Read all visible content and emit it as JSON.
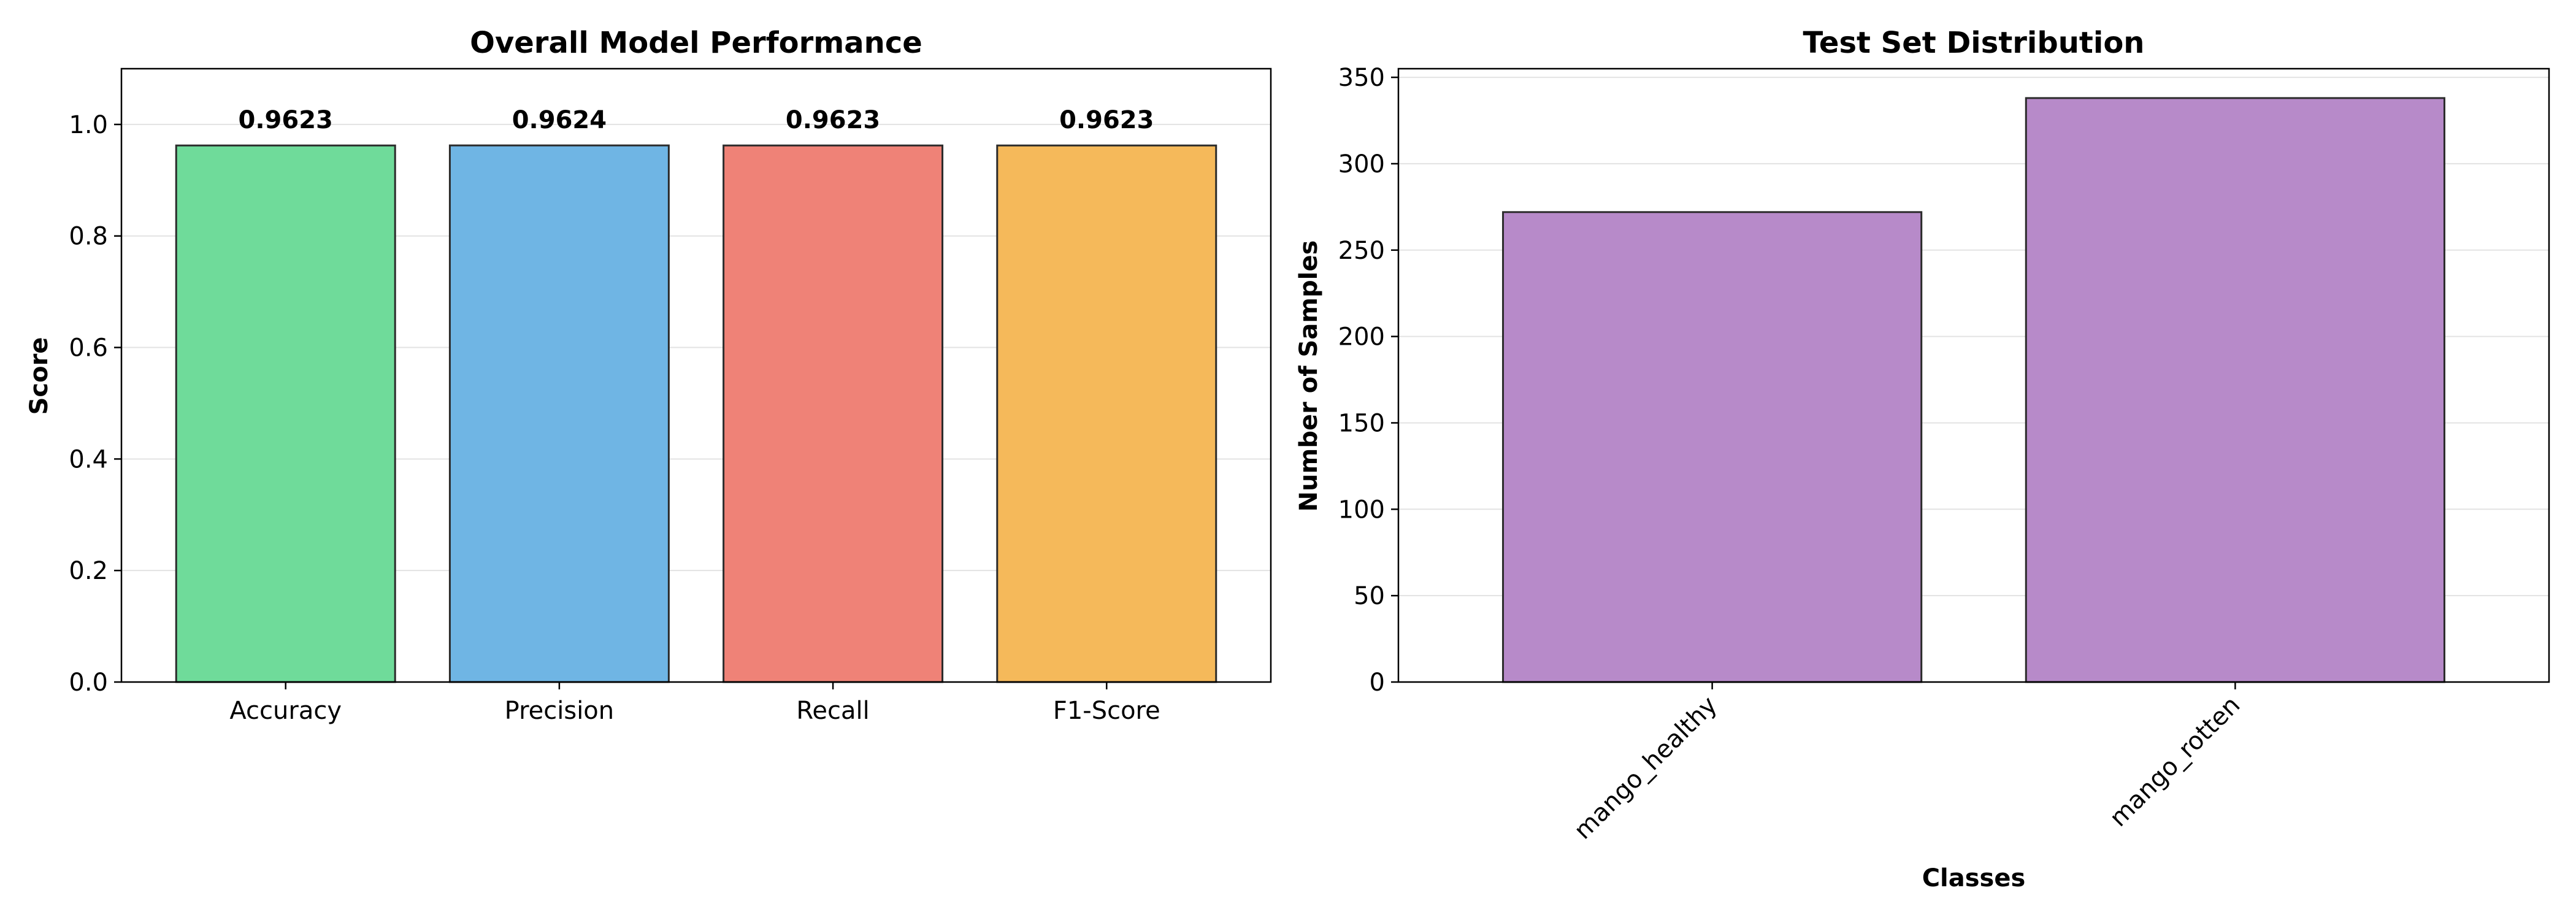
{
  "chart_data": [
    {
      "type": "bar",
      "title": "Overall Model Performance",
      "xlabel": "",
      "ylabel": "Score",
      "categories": [
        "Accuracy",
        "Precision",
        "Recall",
        "F1-Score"
      ],
      "values": [
        0.9623,
        0.9624,
        0.9623,
        0.9623
      ],
      "value_labels": [
        "0.9623",
        "0.9624",
        "0.9623",
        "0.9623"
      ],
      "colors": [
        "#6fdb9a",
        "#6fb5e4",
        "#ef8277",
        "#f5b95a"
      ],
      "ylim": [
        0,
        1.1
      ],
      "yticks": [
        0,
        0.2,
        0.4,
        0.6,
        0.8,
        1.0
      ],
      "ytick_labels": [
        "0.0",
        "0.2",
        "0.4",
        "0.6",
        "0.8",
        "1.0"
      ],
      "grid": true
    },
    {
      "type": "bar",
      "title": "Test Set Distribution",
      "xlabel": "Classes",
      "ylabel": "Number of Samples",
      "categories": [
        "mango_healthy",
        "mango_rotten"
      ],
      "values": [
        272,
        338
      ],
      "colors": [
        "#b78ac9",
        "#b78ac9"
      ],
      "ylim": [
        0,
        355
      ],
      "yticks": [
        0,
        50,
        100,
        150,
        200,
        250,
        300,
        350
      ],
      "ytick_labels": [
        "0",
        "50",
        "100",
        "150",
        "200",
        "250",
        "300",
        "350"
      ],
      "xtick_rotation": 45,
      "grid": true
    }
  ]
}
